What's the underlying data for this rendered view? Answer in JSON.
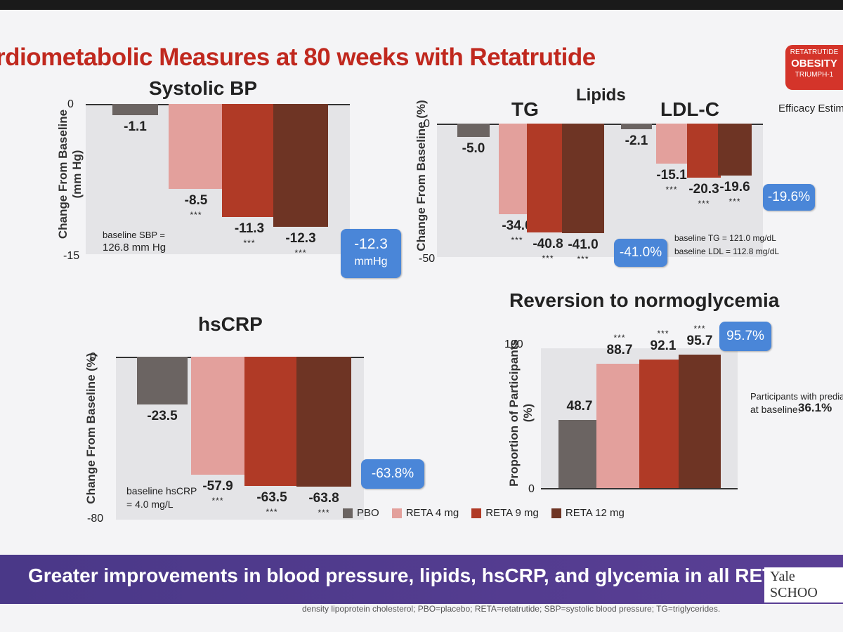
{
  "slide": {
    "title": "rdiometabolic Measures at 80 weeks with Retatrutide",
    "badge": {
      "line1": "RETATRUTIDE",
      "line2": "OBESITY",
      "line3": "TRIUMPH-1"
    },
    "efficacy_label": "Efficacy Estim",
    "lipids_title": "Lipids",
    "banner_text": "Greater improvements in blood pressure, lipids, hsCRP, and glycemia in all RETA arms than wi",
    "top_right_text": "Yale SCHOO",
    "footnote": "density lipoprotein cholesterol; PBO=placebo; RETA=retatrutide; SBP=systolic blood pressure; TG=triglycerides.",
    "colors": {
      "PBO": "#6b6462",
      "RETA 4 mg": "#e3a09c",
      "RETA 9 mg": "#b03a26",
      "RETA 12 mg": "#6e3424",
      "callout": "#4a86d8",
      "title": "#c0281e",
      "banner": "#4a3888"
    }
  },
  "legend": [
    "PBO",
    "RETA 4 mg",
    "RETA 9 mg",
    "RETA 12 mg"
  ],
  "chart_data": [
    {
      "id": "sbp",
      "type": "bar",
      "title": "Systolic BP",
      "ylabel": "Change From Baseline (mm Hg)",
      "ylim": [
        -15,
        0
      ],
      "yticks": [
        "0",
        "-15"
      ],
      "categories": [
        "PBO",
        "RETA 4 mg",
        "RETA 9 mg",
        "RETA 12 mg"
      ],
      "values": [
        -1.1,
        -8.5,
        -11.3,
        -12.3
      ],
      "value_labels": [
        "-1.1",
        "-8.5",
        "-11.3",
        "-12.3"
      ],
      "stars": [
        "",
        "***",
        "***",
        "***"
      ],
      "note_line1": "baseline SBP =",
      "note_line2": "126.8 mm Hg",
      "callout_line1": "-12.3",
      "callout_line2": "mmHg"
    },
    {
      "id": "tg",
      "type": "bar",
      "title": "TG",
      "ylabel": "Change From Baseline (%)",
      "ylim": [
        -50,
        0
      ],
      "yticks": [
        "0",
        "-50"
      ],
      "categories": [
        "PBO",
        "RETA 4 mg",
        "RETA 9 mg",
        "RETA 12 mg"
      ],
      "values": [
        -5.0,
        -34.0,
        -40.8,
        -41.0
      ],
      "value_labels": [
        "-5.0",
        "-34.0",
        "-40.8",
        "-41.0"
      ],
      "stars": [
        "",
        "***",
        "***",
        "***"
      ],
      "callout": "-41.0%"
    },
    {
      "id": "ldl",
      "type": "bar",
      "title": "LDL-C",
      "ylim": [
        -50,
        0
      ],
      "categories": [
        "PBO",
        "RETA 4 mg",
        "RETA 9 mg",
        "RETA 12 mg"
      ],
      "values": [
        -2.1,
        -15.1,
        -20.3,
        -19.6
      ],
      "value_labels": [
        "-2.1",
        "-15.1",
        "-20.3",
        "-19.6"
      ],
      "stars": [
        "",
        "***",
        "***",
        "***"
      ],
      "note_line1": "baseline TG = 121.0 mg/dL",
      "note_line2": "baseline LDL = 112.8 mg/dL",
      "callout": "-19.6%"
    },
    {
      "id": "hscrp",
      "type": "bar",
      "title": "hsCRP",
      "ylabel": "Change From Baseline (%)",
      "ylim": [
        -80,
        0
      ],
      "yticks": [
        "0",
        "-80"
      ],
      "categories": [
        "PBO",
        "RETA 4 mg",
        "RETA 9 mg",
        "RETA 12 mg"
      ],
      "values": [
        -23.5,
        -57.9,
        -63.5,
        -63.8
      ],
      "value_labels": [
        "-23.5",
        "-57.9",
        "-63.5",
        "-63.8"
      ],
      "stars": [
        "",
        "***",
        "***",
        "***"
      ],
      "note_line1": "baseline hsCRP",
      "note_line2": "= 4.0 mg/L",
      "callout": "-63.8%"
    },
    {
      "id": "normo",
      "type": "bar",
      "title": "Reversion to normoglycemia",
      "ylabel": "Proportion of Participants (%)",
      "ylim": [
        0,
        100
      ],
      "yticks": [
        "100",
        "0"
      ],
      "categories": [
        "PBO",
        "RETA 4 mg",
        "RETA 9 mg",
        "RETA 12 mg"
      ],
      "values": [
        48.7,
        88.7,
        92.1,
        95.7
      ],
      "value_labels": [
        "48.7",
        "88.7",
        "92.1",
        "95.7"
      ],
      "stars": [
        "",
        "***",
        "***",
        "***"
      ],
      "note_line1": "Participants with prediab",
      "note_prefix": "at baseline: ",
      "note_value": "36.1%",
      "callout": "95.7%"
    }
  ]
}
